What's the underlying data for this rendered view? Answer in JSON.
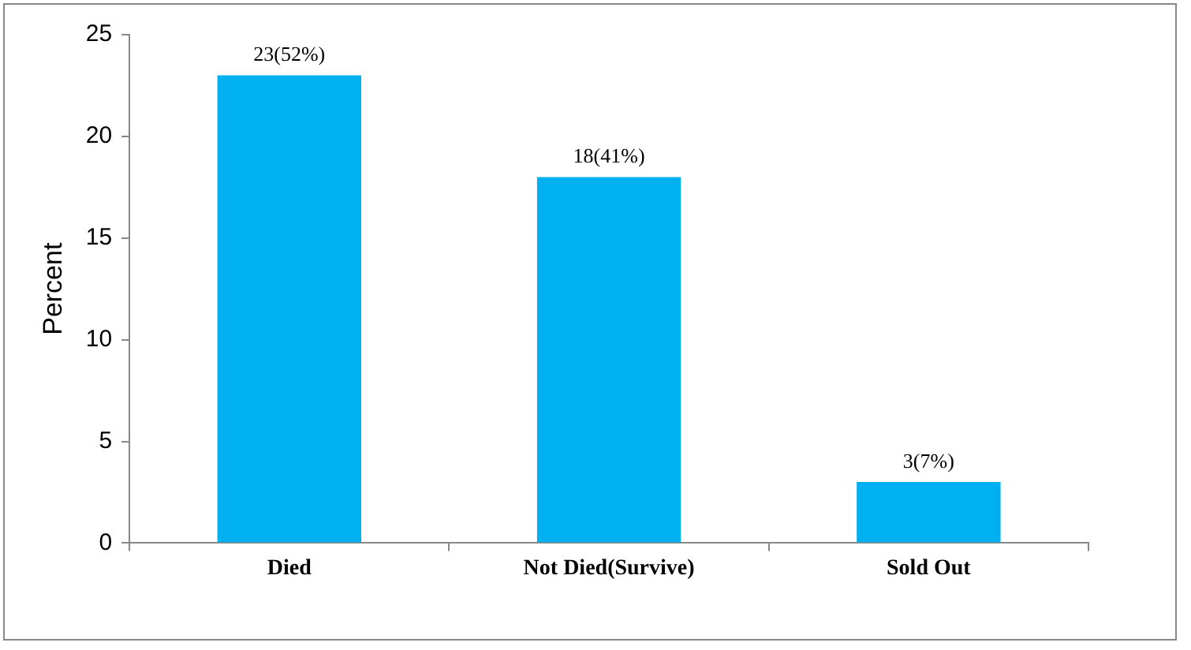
{
  "chart_data": {
    "type": "bar",
    "ylabel": "Percent",
    "categories": [
      "Died",
      "Not Died(Survive)",
      "Sold Out"
    ],
    "values": [
      23,
      18,
      3
    ],
    "color": "#00b0f0",
    "value_labels": [
      "23(52%)",
      "18(41%)",
      "3(7%)"
    ],
    "ylim": [
      0,
      25
    ],
    "yticks": [
      0,
      5,
      10,
      15,
      20,
      25
    ],
    "grid": false,
    "legend": false
  }
}
